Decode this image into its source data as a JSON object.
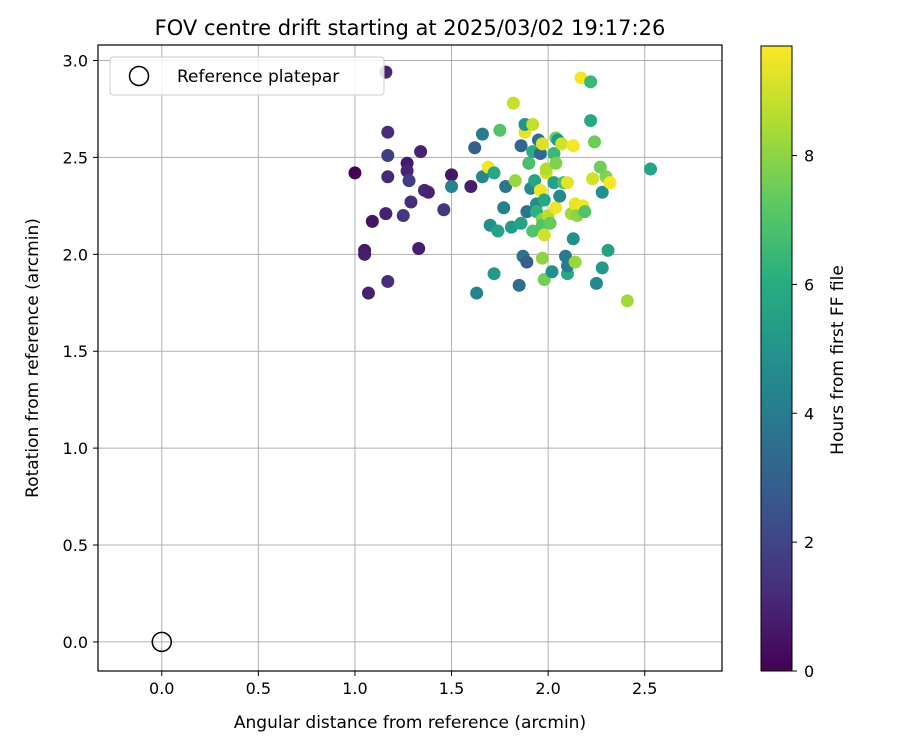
{
  "chart_data": {
    "type": "scatter",
    "title": "FOV centre drift starting at 2025/03/02 19:17:26",
    "xlabel": "Angular distance from reference (arcmin)",
    "ylabel": "Rotation from reference (arcmin)",
    "xlim": [
      -0.33,
      2.9
    ],
    "ylim": [
      -0.15,
      3.08
    ],
    "xticks": [
      "0.0",
      "0.5",
      "1.0",
      "1.5",
      "2.0",
      "2.5"
    ],
    "yticks": [
      "0.0",
      "0.5",
      "1.0",
      "1.5",
      "2.0",
      "2.5",
      "3.0"
    ],
    "grid": true,
    "legend": {
      "placement": "top-left",
      "entries": [
        "Reference platepar"
      ]
    },
    "reference_point": {
      "x": 0.0,
      "y": 0.0
    },
    "colorbar": {
      "label": "Hours from first FF file",
      "range": [
        0,
        9.7
      ],
      "ticks": [
        "0",
        "2",
        "4",
        "6",
        "8"
      ],
      "colormap": "viridis"
    },
    "points": [
      [
        1.0,
        2.42,
        0.1
      ],
      [
        1.05,
        2.02,
        0.6
      ],
      [
        1.05,
        2.0,
        0.8
      ],
      [
        1.07,
        1.8,
        0.9
      ],
      [
        1.09,
        2.17,
        0.5
      ],
      [
        1.16,
        2.94,
        1.0
      ],
      [
        1.16,
        2.21,
        0.9
      ],
      [
        1.17,
        2.63,
        1.2
      ],
      [
        1.17,
        2.51,
        1.8
      ],
      [
        1.17,
        2.4,
        1.1
      ],
      [
        1.17,
        1.86,
        1.2
      ],
      [
        1.25,
        2.2,
        1.6
      ],
      [
        1.27,
        2.47,
        0.7
      ],
      [
        1.27,
        2.43,
        1.0
      ],
      [
        1.28,
        2.38,
        1.7
      ],
      [
        1.29,
        2.27,
        1.3
      ],
      [
        1.33,
        2.03,
        0.8
      ],
      [
        1.34,
        2.53,
        0.9
      ],
      [
        1.36,
        2.33,
        1.1
      ],
      [
        1.38,
        2.32,
        0.9
      ],
      [
        1.46,
        2.23,
        1.5
      ],
      [
        1.5,
        2.41,
        0.6
      ],
      [
        1.5,
        2.35,
        4.3
      ],
      [
        1.6,
        2.35,
        0.8
      ],
      [
        1.62,
        2.55,
        3.0
      ],
      [
        1.63,
        1.8,
        4.3
      ],
      [
        1.66,
        2.4,
        4.5
      ],
      [
        1.66,
        2.62,
        4.0
      ],
      [
        1.69,
        2.45,
        9.5
      ],
      [
        1.7,
        2.15,
        4.8
      ],
      [
        1.72,
        1.9,
        5.2
      ],
      [
        1.72,
        2.42,
        5.8
      ],
      [
        1.74,
        2.12,
        5.5
      ],
      [
        1.75,
        2.64,
        7.0
      ],
      [
        1.77,
        2.24,
        4.2
      ],
      [
        1.78,
        2.35,
        3.8
      ],
      [
        1.81,
        2.14,
        5.2
      ],
      [
        1.82,
        2.78,
        8.9
      ],
      [
        1.83,
        2.38,
        8.2
      ],
      [
        1.85,
        1.84,
        3.5
      ],
      [
        1.86,
        2.56,
        3.2
      ],
      [
        1.86,
        2.16,
        5.5
      ],
      [
        1.87,
        1.99,
        3.7
      ],
      [
        1.88,
        2.63,
        9.3
      ],
      [
        1.88,
        2.67,
        5.0
      ],
      [
        1.89,
        2.22,
        3.7
      ],
      [
        1.89,
        1.96,
        2.9
      ],
      [
        1.9,
        2.47,
        6.8
      ],
      [
        1.91,
        2.34,
        4.5
      ],
      [
        1.92,
        2.12,
        7.0
      ],
      [
        1.92,
        2.53,
        6.0
      ],
      [
        1.92,
        2.67,
        8.8
      ],
      [
        1.93,
        2.38,
        5.7
      ],
      [
        1.94,
        2.26,
        4.7
      ],
      [
        1.94,
        2.22,
        6.2
      ],
      [
        1.95,
        2.59,
        3.5
      ],
      [
        1.96,
        2.52,
        3.3
      ],
      [
        1.96,
        2.33,
        9.5
      ],
      [
        1.97,
        2.18,
        7.8
      ],
      [
        1.97,
        2.57,
        9.2
      ],
      [
        1.97,
        2.15,
        7.0
      ],
      [
        1.97,
        1.98,
        8.0
      ],
      [
        1.98,
        2.1,
        9.0
      ],
      [
        1.98,
        2.28,
        5.8
      ],
      [
        1.98,
        1.87,
        7.6
      ],
      [
        1.99,
        2.42,
        9.1
      ],
      [
        1.99,
        2.44,
        8.5
      ],
      [
        2.0,
        2.2,
        8.7
      ],
      [
        2.01,
        2.16,
        7.4
      ],
      [
        2.02,
        1.91,
        4.8
      ],
      [
        2.03,
        2.37,
        5.5
      ],
      [
        2.03,
        2.52,
        6.5
      ],
      [
        2.04,
        2.6,
        7.5
      ],
      [
        2.04,
        2.24,
        9.5
      ],
      [
        2.04,
        2.47,
        7.8
      ],
      [
        2.05,
        2.59,
        5.2
      ],
      [
        2.06,
        2.3,
        4.5
      ],
      [
        2.07,
        2.57,
        9.0
      ],
      [
        2.08,
        2.37,
        6.8
      ],
      [
        2.09,
        1.99,
        3.9
      ],
      [
        2.1,
        1.9,
        5.8
      ],
      [
        2.1,
        1.94,
        4.0
      ],
      [
        2.1,
        2.37,
        9.3
      ],
      [
        2.12,
        2.21,
        8.3
      ],
      [
        2.13,
        2.56,
        9.6
      ],
      [
        2.13,
        2.08,
        4.8
      ],
      [
        2.14,
        1.96,
        8.2
      ],
      [
        2.14,
        2.26,
        9.4
      ],
      [
        2.15,
        2.2,
        8.0
      ],
      [
        2.17,
        2.91,
        9.6
      ],
      [
        2.18,
        2.25,
        9.5
      ],
      [
        2.19,
        2.22,
        7.0
      ],
      [
        2.22,
        2.89,
        6.5
      ],
      [
        2.22,
        2.69,
        5.8
      ],
      [
        2.23,
        2.39,
        9.0
      ],
      [
        2.24,
        2.58,
        7.5
      ],
      [
        2.25,
        1.85,
        4.5
      ],
      [
        2.27,
        2.45,
        7.5
      ],
      [
        2.28,
        2.32,
        4.8
      ],
      [
        2.28,
        1.93,
        5.2
      ],
      [
        2.3,
        2.4,
        7.8
      ],
      [
        2.31,
        2.02,
        5.5
      ],
      [
        2.32,
        2.37,
        9.6
      ],
      [
        2.41,
        1.76,
        8.3
      ],
      [
        2.53,
        2.44,
        5.6
      ]
    ]
  }
}
